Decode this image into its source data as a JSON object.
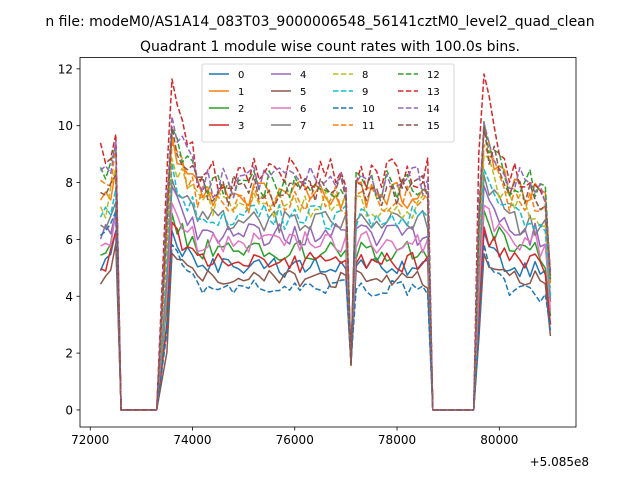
{
  "suptitle": "n file: modeM0/AS1A14_083T03_9000006548_56141cztM0_level2_quad_clean",
  "chart_data": {
    "type": "line",
    "title": "Quadrant 1 module wise count rates with 100.0s bins.",
    "xlabel": "",
    "ylabel": "",
    "x_offset_label": "+5.085e8",
    "xlim": [
      71800,
      81500
    ],
    "ylim": [
      -0.6,
      12.4
    ],
    "xticks": [
      72000,
      74000,
      76000,
      78000,
      80000
    ],
    "xtick_labels": [
      "72000",
      "74000",
      "76000",
      "78000",
      "80000"
    ],
    "yticks": [
      0,
      2,
      4,
      6,
      8,
      10,
      12
    ],
    "ytick_labels": [
      "0",
      "2",
      "4",
      "6",
      "8",
      "10",
      "12"
    ],
    "grid": false,
    "legend_position": "top-center",
    "legend_columns": 4,
    "segments": [
      {
        "kind": "active",
        "start": 72200,
        "end": 72500
      },
      {
        "kind": "zero",
        "start": 72600,
        "end": 73300
      },
      {
        "kind": "active",
        "start": 73500,
        "end": 77000
      },
      {
        "kind": "dip",
        "at": 77100
      },
      {
        "kind": "active",
        "start": 77200,
        "end": 78600
      },
      {
        "kind": "zero",
        "start": 78700,
        "end": 79500
      },
      {
        "kind": "active",
        "start": 79600,
        "end": 81000
      }
    ],
    "series": [
      {
        "name": "0",
        "color": "#1f77b4",
        "dash": "solid",
        "level": 5.0,
        "start_level": 5.0,
        "peak": 6.3,
        "end_level": 3.0
      },
      {
        "name": "1",
        "color": "#ff7f0e",
        "dash": "solid",
        "level": 7.6,
        "start_level": 7.5,
        "peak": 9.7,
        "end_level": 4.5
      },
      {
        "name": "2",
        "color": "#2ca02c",
        "dash": "solid",
        "level": 5.6,
        "start_level": 5.5,
        "peak": 7.0,
        "end_level": 3.3
      },
      {
        "name": "3",
        "color": "#d62728",
        "dash": "solid",
        "level": 5.2,
        "start_level": 5.0,
        "peak": 6.5,
        "end_level": 3.0
      },
      {
        "name": "4",
        "color": "#9467bd",
        "dash": "solid",
        "level": 6.2,
        "start_level": 6.0,
        "peak": 7.8,
        "end_level": 3.8
      },
      {
        "name": "5",
        "color": "#8c564b",
        "dash": "solid",
        "level": 4.6,
        "start_level": 4.4,
        "peak": 5.5,
        "end_level": 2.6
      },
      {
        "name": "6",
        "color": "#e377c2",
        "dash": "solid",
        "level": 5.9,
        "start_level": 5.7,
        "peak": 7.3,
        "end_level": 3.5
      },
      {
        "name": "7",
        "color": "#7f7f7f",
        "dash": "solid",
        "level": 6.6,
        "start_level": 6.4,
        "peak": 8.2,
        "end_level": 3.9
      },
      {
        "name": "8",
        "color": "#bcbd22",
        "dash": "dashed",
        "level": 7.2,
        "start_level": 7.0,
        "peak": 9.0,
        "end_level": 4.3
      },
      {
        "name": "9",
        "color": "#17becf",
        "dash": "dashed",
        "level": 6.8,
        "start_level": 6.6,
        "peak": 8.6,
        "end_level": 4.0
      },
      {
        "name": "10",
        "color": "#1f77b4",
        "dash": "dashed",
        "level": 4.3,
        "start_level": 6.0,
        "peak": 5.8,
        "end_level": 2.8
      },
      {
        "name": "11",
        "color": "#ff7f0e",
        "dash": "dashed",
        "level": 7.4,
        "start_level": 7.8,
        "peak": 9.4,
        "end_level": 4.4
      },
      {
        "name": "12",
        "color": "#2ca02c",
        "dash": "dashed",
        "level": 7.9,
        "start_level": 8.2,
        "peak": 10.0,
        "end_level": 4.7
      },
      {
        "name": "13",
        "color": "#d62728",
        "dash": "dashed",
        "level": 8.3,
        "start_level": 9.0,
        "peak": 11.8,
        "end_level": 4.9
      },
      {
        "name": "14",
        "color": "#9467bd",
        "dash": "dashed",
        "level": 8.0,
        "start_level": 8.0,
        "peak": 10.2,
        "end_level": 4.8
      },
      {
        "name": "15",
        "color": "#8c564b",
        "dash": "dashed",
        "level": 7.7,
        "start_level": 7.2,
        "peak": 9.9,
        "end_level": 4.6
      }
    ]
  }
}
